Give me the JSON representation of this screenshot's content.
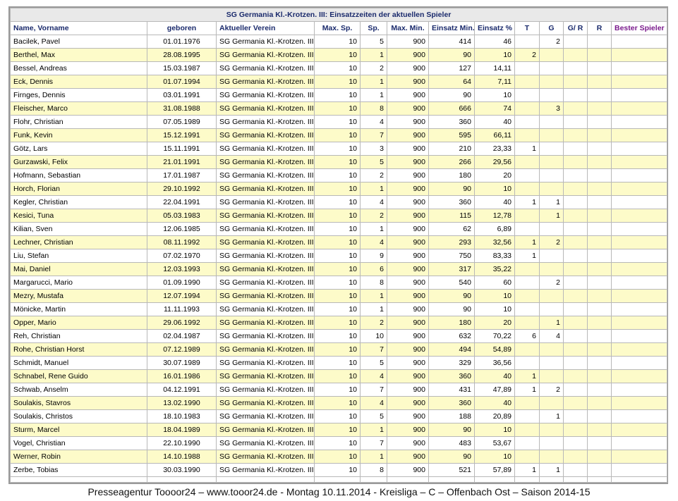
{
  "table": {
    "title": "SG Germania Kl.-Krotzen. III: Einsatzzeiten der aktuellen Spieler",
    "columns": [
      "Name, Vorname",
      "geboren",
      "Aktueller Verein",
      "Max. Sp.",
      "Sp.",
      "Max. Min.",
      "Einsatz Min.",
      "Einsatz %",
      "T",
      "G",
      "G/ R",
      "R",
      "Bester Spieler"
    ],
    "rows": [
      [
        "Bacilek, Pavel",
        "01.01.1976",
        "SG Germania Kl.-Krotzen. III",
        10,
        5,
        900,
        414,
        46,
        null,
        2,
        null,
        null,
        null
      ],
      [
        "Berthel, Max",
        "28.08.1995",
        "SG Germania Kl.-Krotzen. III",
        10,
        1,
        900,
        90,
        10,
        2,
        null,
        null,
        null,
        null
      ],
      [
        "Bessel, Andreas",
        "15.03.1987",
        "SG Germania Kl.-Krotzen. III",
        10,
        2,
        900,
        127,
        "14,11",
        null,
        null,
        null,
        null,
        null
      ],
      [
        "Eck, Dennis",
        "01.07.1994",
        "SG Germania Kl.-Krotzen. III",
        10,
        1,
        900,
        64,
        "7,11",
        null,
        null,
        null,
        null,
        null
      ],
      [
        "Firnges, Dennis",
        "03.01.1991",
        "SG Germania Kl.-Krotzen. III",
        10,
        1,
        900,
        90,
        10,
        null,
        null,
        null,
        null,
        null
      ],
      [
        "Fleischer, Marco",
        "31.08.1988",
        "SG Germania Kl.-Krotzen. III",
        10,
        8,
        900,
        666,
        74,
        null,
        3,
        null,
        null,
        null
      ],
      [
        "Flohr, Christian",
        "07.05.1989",
        "SG Germania Kl.-Krotzen. III",
        10,
        4,
        900,
        360,
        40,
        null,
        null,
        null,
        null,
        null
      ],
      [
        "Funk, Kevin",
        "15.12.1991",
        "SG Germania Kl.-Krotzen. III",
        10,
        7,
        900,
        595,
        "66,11",
        null,
        null,
        null,
        null,
        null
      ],
      [
        "Götz, Lars",
        "15.11.1991",
        "SG Germania Kl.-Krotzen. III",
        10,
        3,
        900,
        210,
        "23,33",
        1,
        null,
        null,
        null,
        null
      ],
      [
        "Gurzawski, Felix",
        "21.01.1991",
        "SG Germania Kl.-Krotzen. III",
        10,
        5,
        900,
        266,
        "29,56",
        null,
        null,
        null,
        null,
        null
      ],
      [
        "Hofmann, Sebastian",
        "17.01.1987",
        "SG Germania Kl.-Krotzen. III",
        10,
        2,
        900,
        180,
        20,
        null,
        null,
        null,
        null,
        null
      ],
      [
        "Horch, Florian",
        "29.10.1992",
        "SG Germania Kl.-Krotzen. III",
        10,
        1,
        900,
        90,
        10,
        null,
        null,
        null,
        null,
        null
      ],
      [
        "Kegler, Christian",
        "22.04.1991",
        "SG Germania Kl.-Krotzen. III",
        10,
        4,
        900,
        360,
        40,
        1,
        1,
        null,
        null,
        null
      ],
      [
        "Kesici, Tuna",
        "05.03.1983",
        "SG Germania Kl.-Krotzen. III",
        10,
        2,
        900,
        115,
        "12,78",
        null,
        1,
        null,
        null,
        null
      ],
      [
        "Kilian, Sven",
        "12.06.1985",
        "SG Germania Kl.-Krotzen. III",
        10,
        1,
        900,
        62,
        "6,89",
        null,
        null,
        null,
        null,
        null
      ],
      [
        "Lechner, Christian",
        "08.11.1992",
        "SG Germania Kl.-Krotzen. III",
        10,
        4,
        900,
        293,
        "32,56",
        1,
        2,
        null,
        null,
        null
      ],
      [
        "Liu, Stefan",
        "07.02.1970",
        "SG Germania Kl.-Krotzen. III",
        10,
        9,
        900,
        750,
        "83,33",
        1,
        null,
        null,
        null,
        null
      ],
      [
        "Mai, Daniel",
        "12.03.1993",
        "SG Germania Kl.-Krotzen. III",
        10,
        6,
        900,
        317,
        "35,22",
        null,
        null,
        null,
        null,
        null
      ],
      [
        "Margarucci, Mario",
        "01.09.1990",
        "SG Germania Kl.-Krotzen. III",
        10,
        8,
        900,
        540,
        60,
        null,
        2,
        null,
        null,
        null
      ],
      [
        "Mezry, Mustafa",
        "12.07.1994",
        "SG Germania Kl.-Krotzen. III",
        10,
        1,
        900,
        90,
        10,
        null,
        null,
        null,
        null,
        null
      ],
      [
        "Mönicke, Martin",
        "11.11.1993",
        "SG Germania Kl.-Krotzen. III",
        10,
        1,
        900,
        90,
        10,
        null,
        null,
        null,
        null,
        null
      ],
      [
        "Opper, Mario",
        "29.06.1992",
        "SG Germania Kl.-Krotzen. III",
        10,
        2,
        900,
        180,
        20,
        null,
        1,
        null,
        null,
        null
      ],
      [
        "Reh, Christian",
        "02.04.1987",
        "SG Germania Kl.-Krotzen. III",
        10,
        10,
        900,
        632,
        "70,22",
        6,
        4,
        null,
        null,
        null
      ],
      [
        "Rohe, Christian Horst",
        "07.12.1989",
        "SG Germania Kl.-Krotzen. III",
        10,
        7,
        900,
        494,
        "54,89",
        null,
        null,
        null,
        null,
        null
      ],
      [
        "Schmidt, Manuel",
        "30.07.1989",
        "SG Germania Kl.-Krotzen. III",
        10,
        5,
        900,
        329,
        "36,56",
        null,
        null,
        null,
        null,
        null
      ],
      [
        "Schnabel, Rene Guido",
        "16.01.1986",
        "SG Germania Kl.-Krotzen. III",
        10,
        4,
        900,
        360,
        40,
        1,
        null,
        null,
        null,
        null
      ],
      [
        "Schwab, Anselm",
        "04.12.1991",
        "SG Germania Kl.-Krotzen. III",
        10,
        7,
        900,
        431,
        "47,89",
        1,
        2,
        null,
        null,
        null
      ],
      [
        "Soulakis, Stavros",
        "13.02.1990",
        "SG Germania Kl.-Krotzen. III",
        10,
        4,
        900,
        360,
        40,
        null,
        null,
        null,
        null,
        null
      ],
      [
        "Soulakis, Christos",
        "18.10.1983",
        "SG Germania Kl.-Krotzen. III",
        10,
        5,
        900,
        188,
        "20,89",
        null,
        1,
        null,
        null,
        null
      ],
      [
        "Sturm, Marcel",
        "18.04.1989",
        "SG Germania Kl.-Krotzen. III",
        10,
        1,
        900,
        90,
        10,
        null,
        null,
        null,
        null,
        null
      ],
      [
        "Vogel, Christian",
        "22.10.1990",
        "SG Germania Kl.-Krotzen. III",
        10,
        7,
        900,
        483,
        "53,67",
        null,
        null,
        null,
        null,
        null
      ],
      [
        "Werner, Robin",
        "14.10.1988",
        "SG Germania Kl.-Krotzen. III",
        10,
        1,
        900,
        90,
        10,
        null,
        null,
        null,
        null,
        null
      ],
      [
        "Zerbe, Tobias",
        "30.03.1990",
        "SG Germania Kl.-Krotzen. III",
        10,
        8,
        900,
        521,
        "57,89",
        1,
        1,
        null,
        null,
        null
      ]
    ]
  },
  "footer": "Presseagentur Toooor24 – www.tooor24.de -  Montag 10.11.2014  - Kreisliga – C – Offenbach Ost – Saison 2014-15"
}
